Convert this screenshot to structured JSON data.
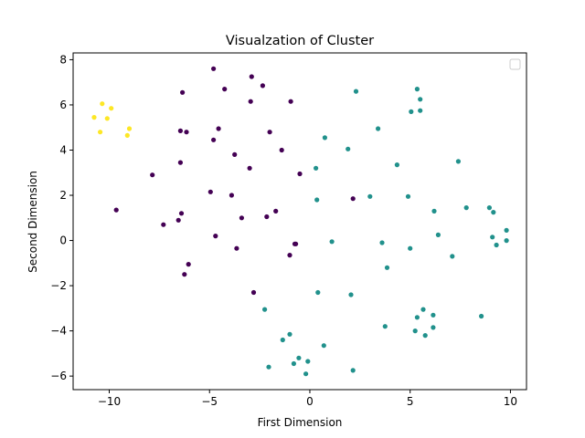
{
  "chart_data": {
    "type": "scatter",
    "title": "Visualzation of Cluster",
    "xlabel": "First Dimension",
    "ylabel": "Second Dimension",
    "xlim": [
      -11.8,
      10.8
    ],
    "ylim": [
      -6.6,
      8.3
    ],
    "xticks": [
      -10,
      -5,
      0,
      5,
      10
    ],
    "yticks": [
      -6,
      -4,
      -2,
      0,
      2,
      4,
      6,
      8
    ],
    "grid": false,
    "legend": {
      "placement": "top-right",
      "entries": []
    },
    "colors": {
      "cluster_0": "#440154",
      "cluster_1": "#21918c",
      "cluster_2": "#fde725"
    },
    "series": [
      {
        "cluster": 0,
        "color": "#440154",
        "points": [
          [
            -4.8,
            7.6
          ],
          [
            -2.9,
            7.25
          ],
          [
            -4.25,
            6.7
          ],
          [
            -2.35,
            6.85
          ],
          [
            -6.35,
            6.55
          ],
          [
            -2.95,
            6.15
          ],
          [
            -0.95,
            6.15
          ],
          [
            -4.55,
            4.95
          ],
          [
            -6.45,
            4.85
          ],
          [
            -6.15,
            4.8
          ],
          [
            -2.0,
            4.8
          ],
          [
            -4.8,
            4.45
          ],
          [
            -1.4,
            4.0
          ],
          [
            -3.75,
            3.8
          ],
          [
            -6.45,
            3.45
          ],
          [
            -3.0,
            3.2
          ],
          [
            -0.5,
            2.95
          ],
          [
            -7.85,
            2.9
          ],
          [
            -4.95,
            2.15
          ],
          [
            -3.9,
            2.0
          ],
          [
            2.15,
            1.85
          ],
          [
            -9.65,
            1.35
          ],
          [
            -1.7,
            1.3
          ],
          [
            -6.4,
            1.2
          ],
          [
            -2.15,
            1.05
          ],
          [
            -3.4,
            1.0
          ],
          [
            -6.55,
            0.9
          ],
          [
            -7.3,
            0.7
          ],
          [
            -4.7,
            0.2
          ],
          [
            -0.75,
            -0.15
          ],
          [
            -0.7,
            -0.15
          ],
          [
            -3.65,
            -0.35
          ],
          [
            -1.0,
            -0.65
          ],
          [
            -6.05,
            -1.05
          ],
          [
            -6.25,
            -1.5
          ],
          [
            -2.8,
            -2.3
          ]
        ]
      },
      {
        "cluster": 1,
        "color": "#21918c",
        "points": [
          [
            5.35,
            6.7
          ],
          [
            2.3,
            6.6
          ],
          [
            5.5,
            6.25
          ],
          [
            5.5,
            5.75
          ],
          [
            5.05,
            5.7
          ],
          [
            3.4,
            4.95
          ],
          [
            0.75,
            4.55
          ],
          [
            1.9,
            4.05
          ],
          [
            7.4,
            3.5
          ],
          [
            4.35,
            3.35
          ],
          [
            0.3,
            3.2
          ],
          [
            3.0,
            1.95
          ],
          [
            4.9,
            1.95
          ],
          [
            0.35,
            1.8
          ],
          [
            7.8,
            1.45
          ],
          [
            8.95,
            1.45
          ],
          [
            6.2,
            1.3
          ],
          [
            9.15,
            1.25
          ],
          [
            9.8,
            0.45
          ],
          [
            6.4,
            0.25
          ],
          [
            9.1,
            0.15
          ],
          [
            9.8,
            0.0
          ],
          [
            1.1,
            -0.05
          ],
          [
            3.6,
            -0.1
          ],
          [
            9.3,
            -0.2
          ],
          [
            5.0,
            -0.35
          ],
          [
            7.1,
            -0.7
          ],
          [
            3.85,
            -1.2
          ],
          [
            0.4,
            -2.3
          ],
          [
            2.05,
            -2.4
          ],
          [
            -2.25,
            -3.05
          ],
          [
            5.65,
            -3.05
          ],
          [
            6.15,
            -3.3
          ],
          [
            8.55,
            -3.35
          ],
          [
            5.35,
            -3.4
          ],
          [
            3.75,
            -3.8
          ],
          [
            6.15,
            -3.85
          ],
          [
            5.25,
            -4.0
          ],
          [
            -1.0,
            -4.15
          ],
          [
            5.75,
            -4.2
          ],
          [
            -1.35,
            -4.4
          ],
          [
            0.7,
            -4.65
          ],
          [
            -0.55,
            -5.2
          ],
          [
            -0.1,
            -5.35
          ],
          [
            -0.8,
            -5.45
          ],
          [
            -2.05,
            -5.6
          ],
          [
            2.15,
            -5.75
          ],
          [
            -0.2,
            -5.9
          ]
        ]
      },
      {
        "cluster": 2,
        "color": "#fde725",
        "points": [
          [
            -10.35,
            6.05
          ],
          [
            -9.9,
            5.85
          ],
          [
            -10.75,
            5.45
          ],
          [
            -10.1,
            5.4
          ],
          [
            -9.0,
            4.95
          ],
          [
            -10.45,
            4.8
          ],
          [
            -9.1,
            4.65
          ]
        ]
      }
    ]
  }
}
